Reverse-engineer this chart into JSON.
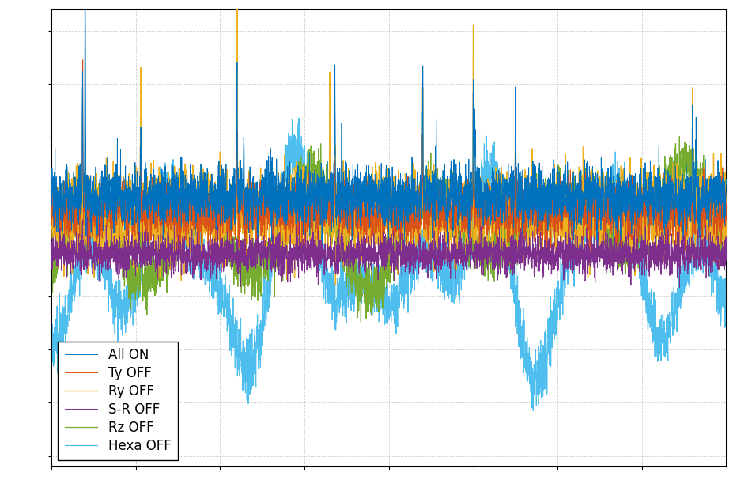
{
  "title": "",
  "xlabel": "",
  "ylabel": "",
  "background_color": "#ffffff",
  "grid_color": "#999999",
  "legend_labels": [
    "All ON",
    "Ty OFF",
    "Ry OFF",
    "S-R OFF",
    "Rz OFF",
    "Hexa OFF"
  ],
  "line_colors": [
    "#0072BD",
    "#D95319",
    "#EDB120",
    "#7E2F8E",
    "#77AC30",
    "#4DBEEE"
  ],
  "legend_loc": "lower left",
  "legend_fontsize": 12,
  "figsize": [
    9.28,
    6.21
  ],
  "dpi": 100
}
